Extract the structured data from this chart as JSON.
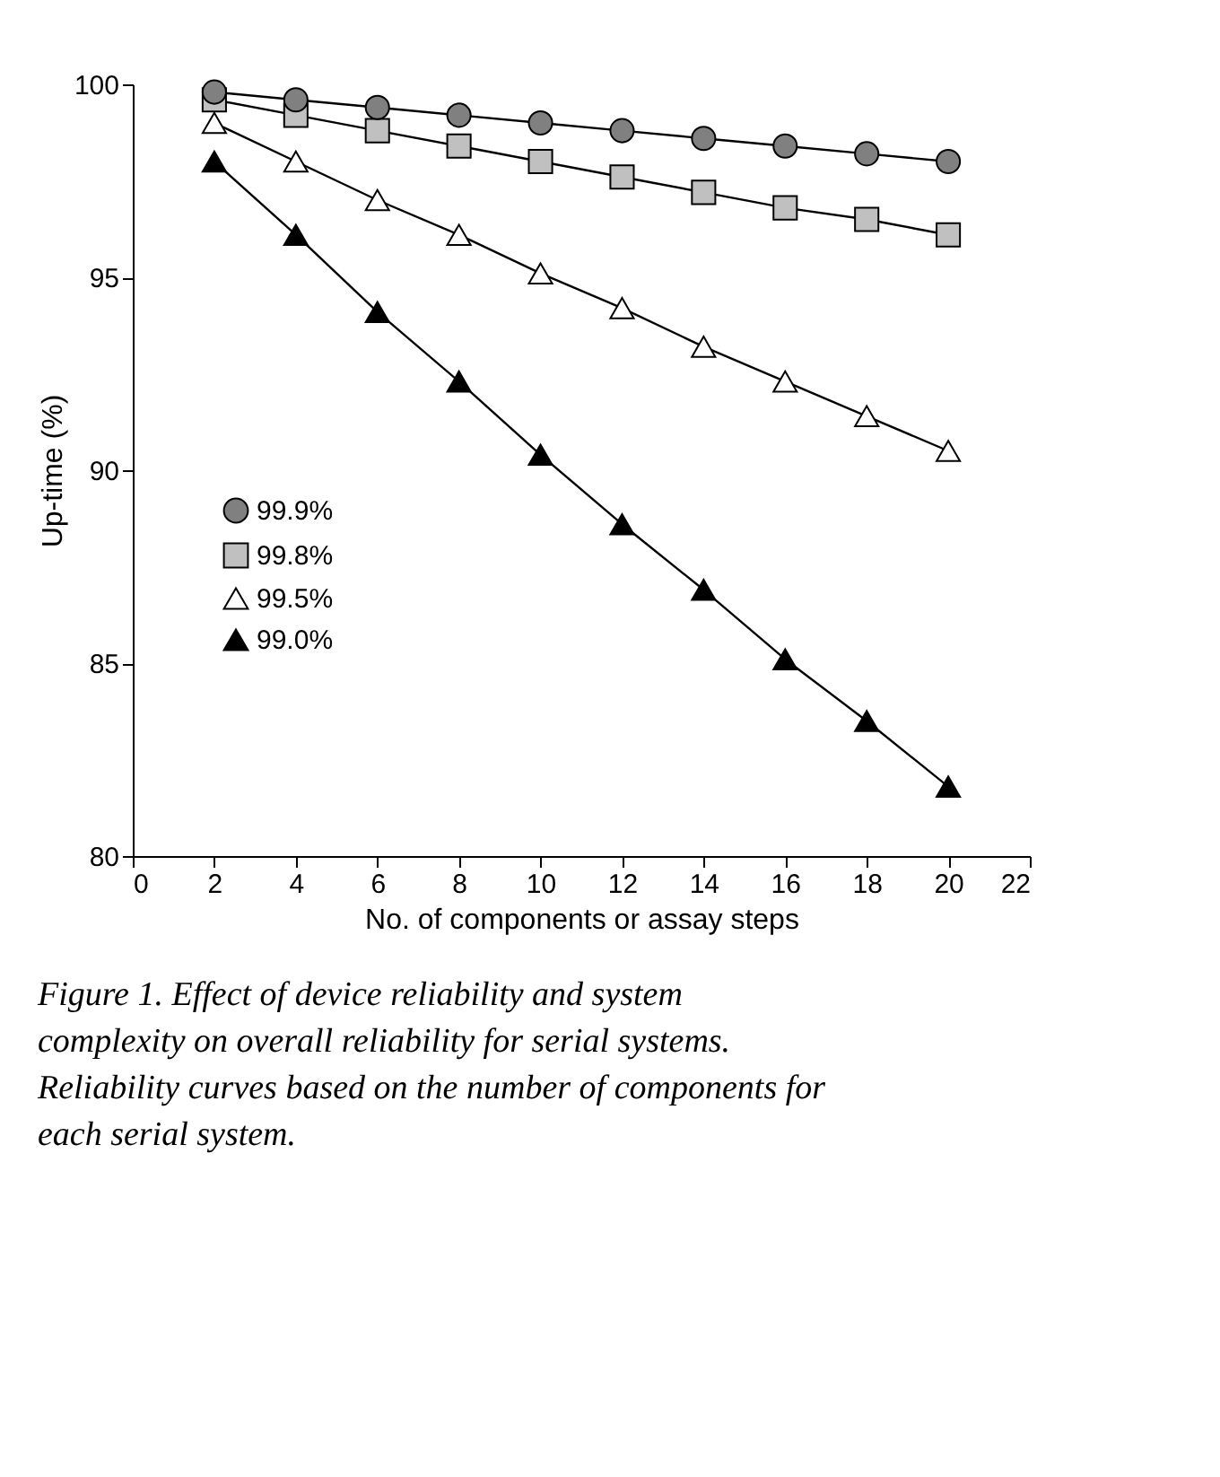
{
  "chart_data": {
    "type": "line",
    "xlabel": "No. of components or assay steps",
    "ylabel": "Up-time (%)",
    "x": [
      2,
      4,
      6,
      8,
      10,
      12,
      14,
      16,
      18,
      20
    ],
    "series": [
      {
        "name": "99.9%",
        "color": "#808080",
        "marker": "circle",
        "values": [
          99.8,
          99.6,
          99.4,
          99.2,
          99.0,
          98.8,
          98.6,
          98.4,
          98.2,
          98.0
        ]
      },
      {
        "name": "99.8%",
        "color": "#c0c0c0",
        "marker": "square",
        "values": [
          99.6,
          99.2,
          98.8,
          98.4,
          98.0,
          97.6,
          97.2,
          96.8,
          96.5,
          96.1
        ]
      },
      {
        "name": "99.5%",
        "color": "#ffffff",
        "marker": "triangle",
        "values": [
          99.0,
          98.0,
          97.0,
          96.1,
          95.1,
          94.2,
          93.2,
          92.3,
          91.4,
          90.5
        ]
      },
      {
        "name": "99.0%",
        "color": "#000000",
        "marker": "triangle",
        "values": [
          98.0,
          96.1,
          94.1,
          92.3,
          90.4,
          88.6,
          86.9,
          85.1,
          83.5,
          81.8
        ]
      }
    ],
    "xlim": [
      0,
      22
    ],
    "xticks": [
      0,
      2,
      4,
      6,
      8,
      10,
      12,
      14,
      16,
      18,
      20,
      22
    ],
    "ylim": [
      80,
      100
    ],
    "yticks": [
      80,
      85,
      90,
      95,
      100
    ],
    "grid": false,
    "legend": "left",
    "line_style": "solid",
    "annotations": [
      "Figure 1. Effect of device reliability and system complexity on overall reliability for serial systems. Reliability curves based on the number of components for each serial system."
    ]
  }
}
